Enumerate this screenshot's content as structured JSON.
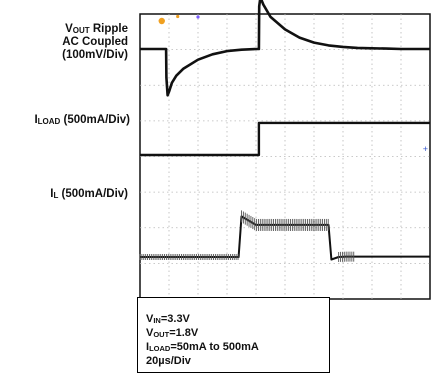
{
  "labels": {
    "vout_ripple": {
      "line1_pre": "V",
      "line1_sub": "OUT",
      "line1_post": " Ripple",
      "line2": "AC Coupled",
      "line3": "(100mV/Div)"
    },
    "iload": {
      "pre": "I",
      "sub": "LOAD",
      "post": " (500mA/Div)"
    },
    "il": {
      "pre": "I",
      "sub": "L",
      "post": " (500mA/Div)"
    }
  },
  "conditions": {
    "vin": {
      "pre": "V",
      "sub": "IN",
      "post": "=3.3V"
    },
    "vout": {
      "pre": "V",
      "sub": "OUT",
      "post": "=1.8V"
    },
    "iload": {
      "pre": "I",
      "sub": "LOAD",
      "post": "=50mA to 500mA"
    },
    "timebase": "20µs/Div"
  },
  "chart_data": {
    "type": "line",
    "title": "",
    "grid": true,
    "x_divisions": 10,
    "y_divisions": 8,
    "xlabel": "20µs/Div",
    "series": [
      {
        "name": "VOUT Ripple AC Coupled",
        "scale": "100mV/Div",
        "x": [
          0,
          18.0,
          18.2,
          19.0,
          20.0,
          22.0,
          25.0,
          30.0,
          40.0,
          50.0,
          60.0,
          70.0,
          80.0,
          82.0,
          82.2,
          83.0,
          85.0,
          90.0,
          100.0,
          110.0,
          120.0,
          130.0,
          140.0,
          150.0,
          160.0,
          170.0,
          180.0,
          190.0,
          200.0
        ],
        "values": [
          0,
          0,
          -80,
          -130,
          -120,
          -95,
          -75,
          -55,
          -30,
          -15,
          -6,
          -2,
          0,
          0,
          120,
          145,
          125,
          90,
          55,
          32,
          18,
          10,
          6,
          3,
          2,
          1,
          0,
          0,
          0
        ]
      },
      {
        "name": "ILOAD",
        "scale": "500mA/Div",
        "x": [
          0,
          82.0,
          82.01,
          200.0
        ],
        "values": [
          50,
          50,
          500,
          500
        ]
      },
      {
        "name": "IL",
        "scale": "500mA/Div",
        "x": [
          0,
          68.0,
          70.0,
          80.0,
          130.0,
          132.0,
          137.0,
          142.0,
          150.0,
          200.0
        ],
        "values": [
          50,
          50,
          620,
          500,
          500,
          15,
          50,
          55,
          55,
          55
        ]
      }
    ]
  }
}
